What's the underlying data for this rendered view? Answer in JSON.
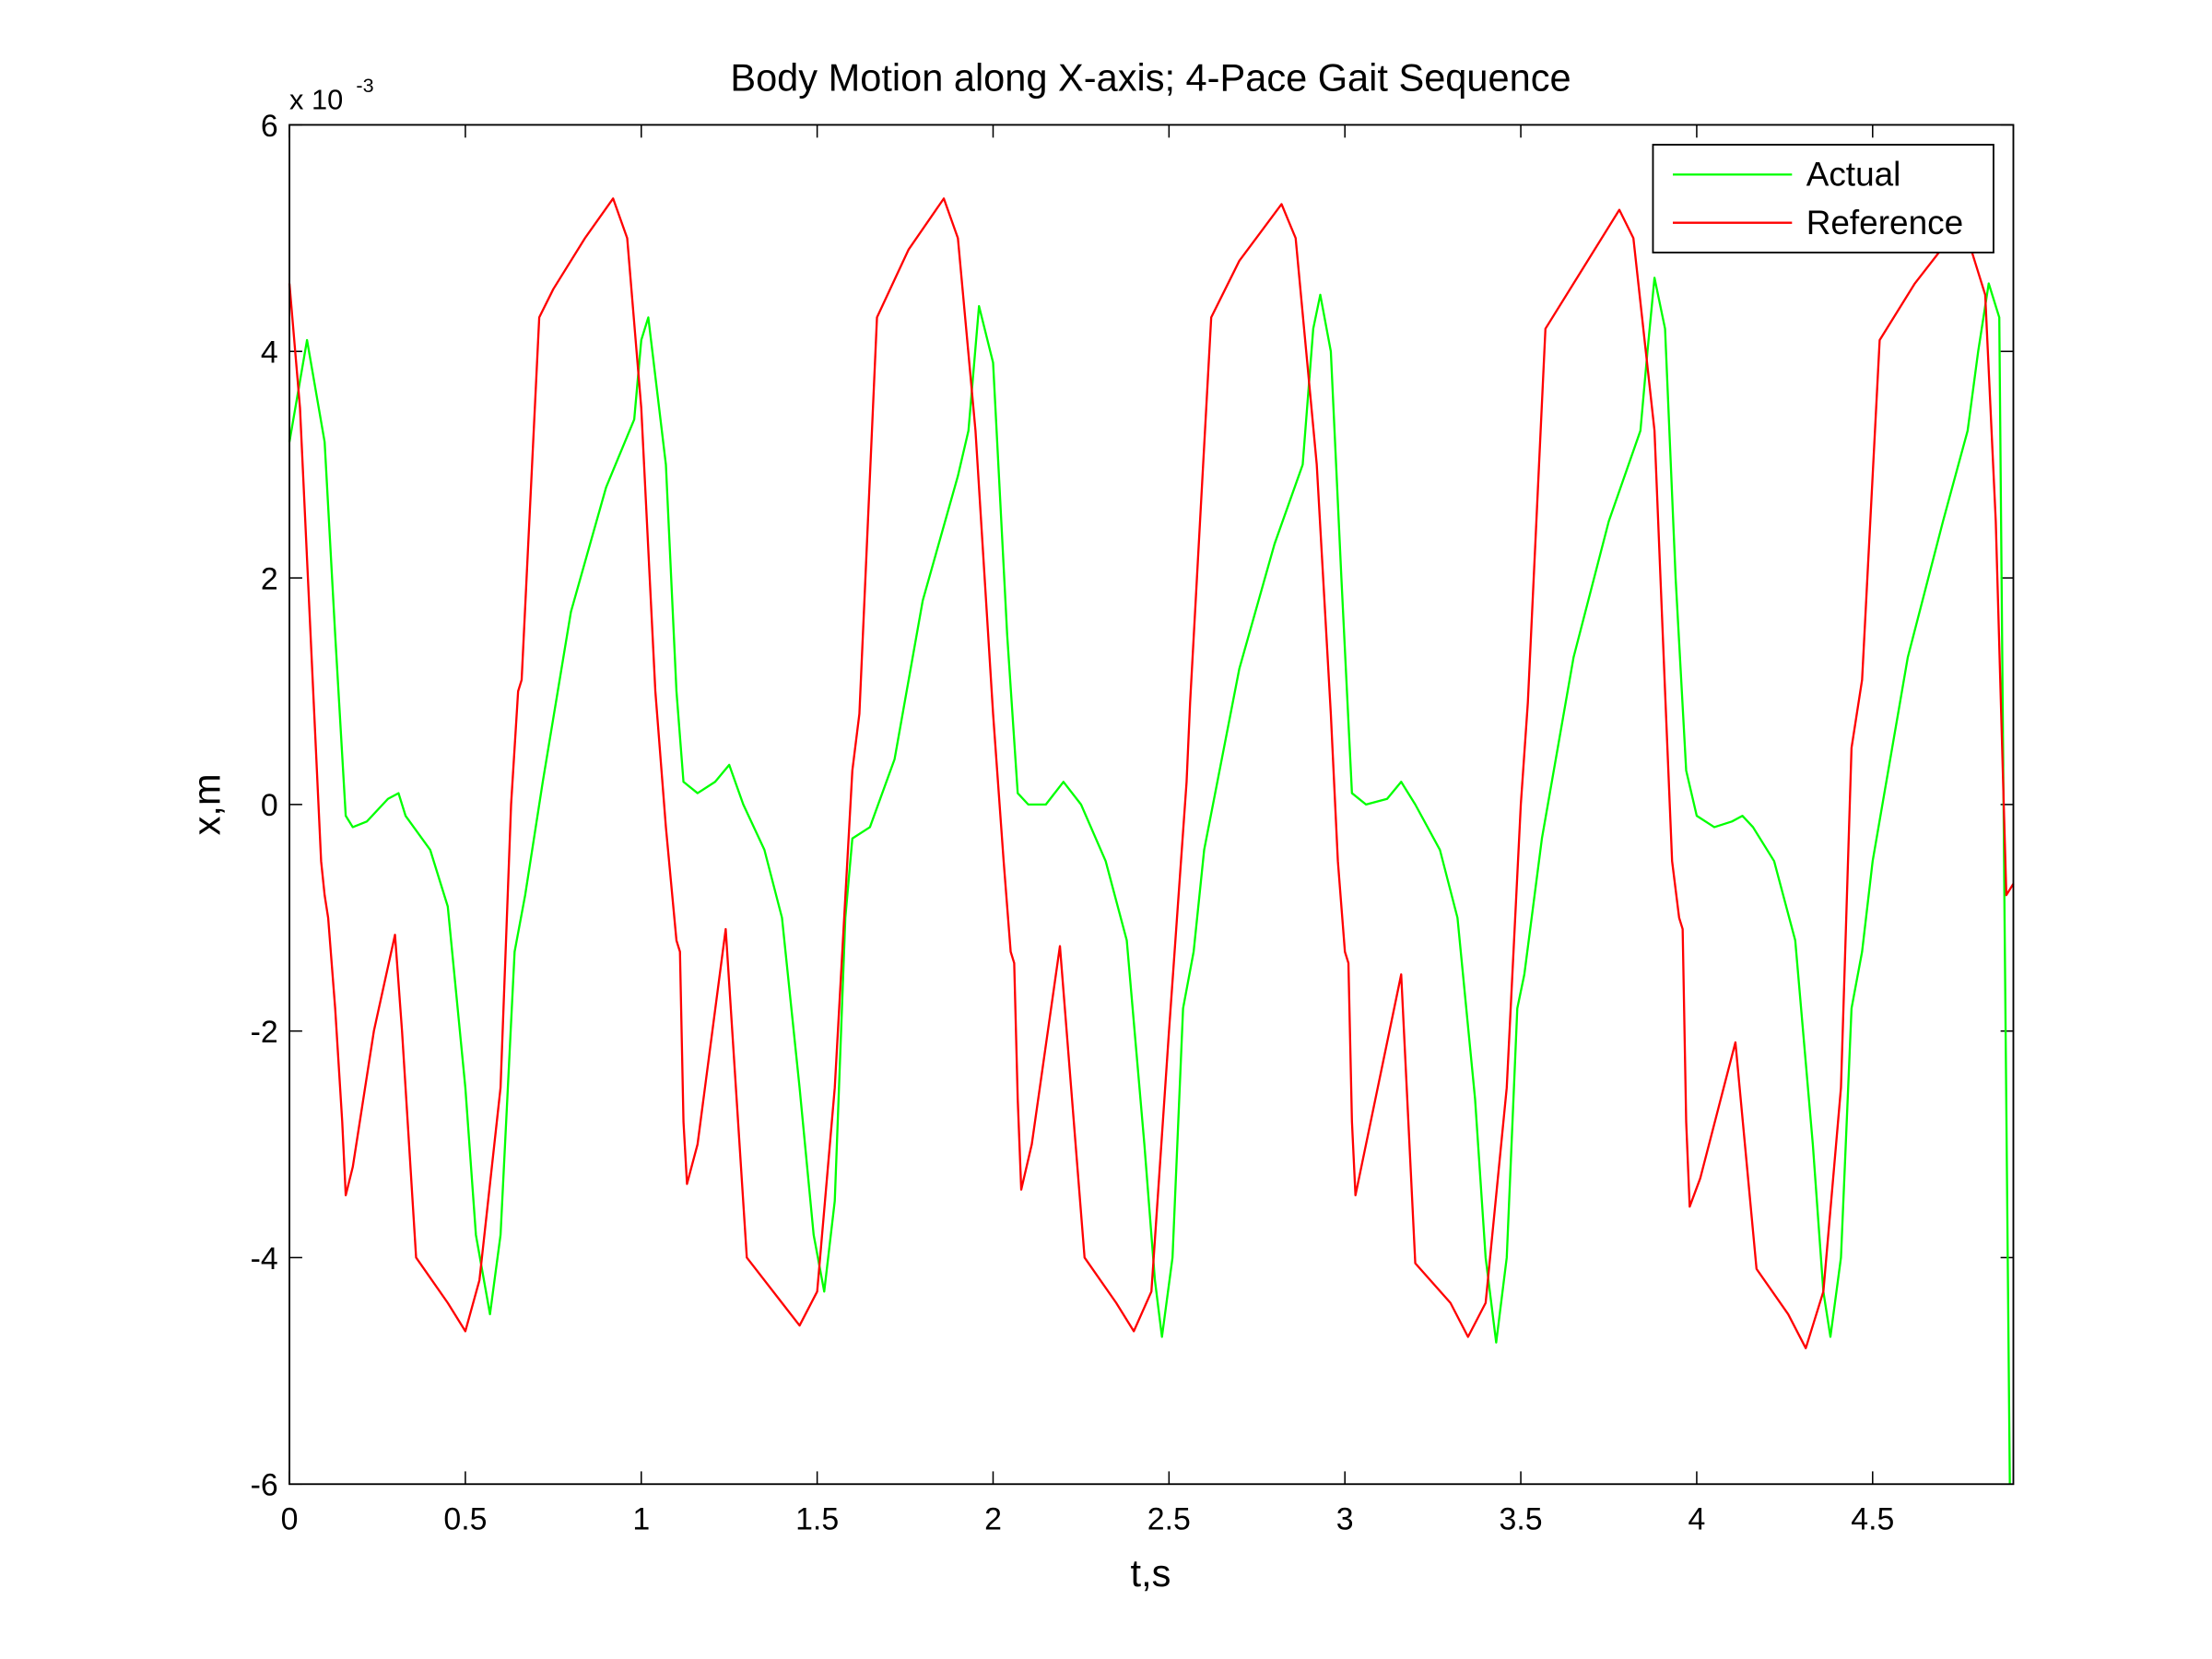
{
  "chart_data": {
    "type": "line",
    "title": "Body Motion along X-axis; 4-Pace Gait Sequence",
    "x_label": "t,s",
    "y_label": "x,m",
    "y_multiplier": "x 10",
    "y_exponent": -3,
    "xlim": [
      0,
      4.9
    ],
    "ylim": [
      -6,
      6
    ],
    "xticks": [
      0,
      0.5,
      1,
      1.5,
      2,
      2.5,
      3,
      3.5,
      4,
      4.5
    ],
    "yticks": [
      -6,
      -4,
      -2,
      0,
      2,
      4,
      6
    ],
    "legend": "northeast",
    "box": true,
    "series": [
      {
        "name": "Actual",
        "color": "#00ff00",
        "x": [
          0,
          0.05,
          0.1,
          0.13,
          0.16,
          0.18,
          0.22,
          0.28,
          0.31,
          0.33,
          0.4,
          0.45,
          0.5,
          0.53,
          0.57,
          0.6,
          0.64,
          0.67,
          0.72,
          0.8,
          0.9,
          0.98,
          1.0,
          1.02,
          1.07,
          1.1,
          1.12,
          1.16,
          1.21,
          1.25,
          1.29,
          1.35,
          1.4,
          1.45,
          1.49,
          1.52,
          1.55,
          1.58,
          1.6,
          1.65,
          1.72,
          1.8,
          1.9,
          1.93,
          1.96,
          2.0,
          2.04,
          2.07,
          2.1,
          2.15,
          2.2,
          2.25,
          2.32,
          2.38,
          2.43,
          2.46,
          2.48,
          2.51,
          2.54,
          2.57,
          2.6,
          2.7,
          2.8,
          2.88,
          2.91,
          2.93,
          2.96,
          2.99,
          3.02,
          3.06,
          3.12,
          3.16,
          3.2,
          3.27,
          3.32,
          3.37,
          3.4,
          3.43,
          3.46,
          3.49,
          3.51,
          3.56,
          3.65,
          3.75,
          3.84,
          3.86,
          3.88,
          3.91,
          3.94,
          3.97,
          4.0,
          4.05,
          4.1,
          4.13,
          4.16,
          4.22,
          4.28,
          4.33,
          4.36,
          4.38,
          4.41,
          4.44,
          4.47,
          4.5,
          4.6,
          4.7,
          4.77,
          4.8,
          4.83,
          4.86,
          4.875,
          4.89
        ],
        "values": [
          3.2,
          4.1,
          3.2,
          1.5,
          -0.1,
          -0.2,
          -0.15,
          0.05,
          0.1,
          -0.1,
          -0.4,
          -0.9,
          -2.5,
          -3.8,
          -4.5,
          -3.8,
          -1.3,
          -0.8,
          0.2,
          1.7,
          2.8,
          3.4,
          4.1,
          4.3,
          3.0,
          1.0,
          0.2,
          0.1,
          0.2,
          0.35,
          0.0,
          -0.4,
          -1.0,
          -2.5,
          -3.8,
          -4.3,
          -3.5,
          -1.0,
          -0.3,
          -0.2,
          0.4,
          1.8,
          2.9,
          3.3,
          4.4,
          3.9,
          1.5,
          0.1,
          0.0,
          0.0,
          0.2,
          0.0,
          -0.5,
          -1.2,
          -3.0,
          -4.2,
          -4.7,
          -4.0,
          -1.8,
          -1.3,
          -0.4,
          1.2,
          2.3,
          3.0,
          4.2,
          4.5,
          4.0,
          2.0,
          0.1,
          0.0,
          0.05,
          0.2,
          0.0,
          -0.4,
          -1.0,
          -2.6,
          -4.0,
          -4.75,
          -4.0,
          -1.8,
          -1.5,
          -0.3,
          1.3,
          2.5,
          3.3,
          4.0,
          4.65,
          4.2,
          2.0,
          0.3,
          -0.1,
          -0.2,
          -0.15,
          -0.1,
          -0.2,
          -0.5,
          -1.2,
          -3.0,
          -4.3,
          -4.7,
          -4.0,
          -1.8,
          -1.3,
          -0.5,
          1.3,
          2.5,
          3.3,
          4.0,
          4.6,
          4.3,
          -1.0,
          -6.0
        ]
      },
      {
        "name": "Reference",
        "color": "#ff0000",
        "x": [
          0,
          0.03,
          0.06,
          0.09,
          0.1,
          0.11,
          0.13,
          0.15,
          0.16,
          0.18,
          0.24,
          0.3,
          0.32,
          0.36,
          0.45,
          0.5,
          0.54,
          0.6,
          0.63,
          0.65,
          0.66,
          0.71,
          0.75,
          0.84,
          0.92,
          0.96,
          1.0,
          1.04,
          1.07,
          1.1,
          1.11,
          1.12,
          1.13,
          1.16,
          1.24,
          1.3,
          1.4,
          1.45,
          1.5,
          1.55,
          1.6,
          1.62,
          1.67,
          1.76,
          1.86,
          1.9,
          1.95,
          2.0,
          2.03,
          2.05,
          2.06,
          2.07,
          2.08,
          2.11,
          2.19,
          2.26,
          2.35,
          2.4,
          2.45,
          2.5,
          2.55,
          2.56,
          2.62,
          2.7,
          2.82,
          2.86,
          2.92,
          2.96,
          2.98,
          3.0,
          3.01,
          3.02,
          3.03,
          3.06,
          3.16,
          3.2,
          3.3,
          3.35,
          3.4,
          3.46,
          3.5,
          3.52,
          3.57,
          3.67,
          3.78,
          3.82,
          3.88,
          3.91,
          3.93,
          3.95,
          3.96,
          3.97,
          3.98,
          4.01,
          4.11,
          4.17,
          4.26,
          4.31,
          4.36,
          4.41,
          4.44,
          4.47,
          4.52,
          4.62,
          4.72,
          4.78,
          4.82,
          4.85,
          4.88,
          4.9
        ],
        "values": [
          4.6,
          3.5,
          1.5,
          -0.5,
          -0.8,
          -1.0,
          -1.8,
          -2.8,
          -3.45,
          -3.2,
          -2.0,
          -1.15,
          -2.0,
          -4.0,
          -4.4,
          -4.65,
          -4.2,
          -2.5,
          0.0,
          1.0,
          1.1,
          4.3,
          4.55,
          5.0,
          5.35,
          5.0,
          3.5,
          1.0,
          -0.2,
          -1.2,
          -1.3,
          -2.8,
          -3.35,
          -3.0,
          -1.1,
          -4.0,
          -4.4,
          -4.6,
          -4.3,
          -2.5,
          0.3,
          0.8,
          4.3,
          4.9,
          5.35,
          5.0,
          3.3,
          0.8,
          -0.5,
          -1.3,
          -1.4,
          -2.6,
          -3.4,
          -3.0,
          -1.25,
          -4.0,
          -4.4,
          -4.65,
          -4.3,
          -2.0,
          0.2,
          0.9,
          4.3,
          4.8,
          5.3,
          5.0,
          3.0,
          0.8,
          -0.5,
          -1.3,
          -1.4,
          -2.8,
          -3.45,
          -3.0,
          -1.5,
          -4.05,
          -4.4,
          -4.7,
          -4.4,
          -2.5,
          0.0,
          0.9,
          4.2,
          4.7,
          5.25,
          5.0,
          3.3,
          1.0,
          -0.5,
          -1.0,
          -1.1,
          -2.8,
          -3.55,
          -3.3,
          -2.1,
          -4.1,
          -4.5,
          -4.8,
          -4.3,
          -2.5,
          0.5,
          1.1,
          4.1,
          4.6,
          5.0,
          4.9,
          4.5,
          2.5,
          -0.8,
          -0.7
        ]
      }
    ]
  }
}
